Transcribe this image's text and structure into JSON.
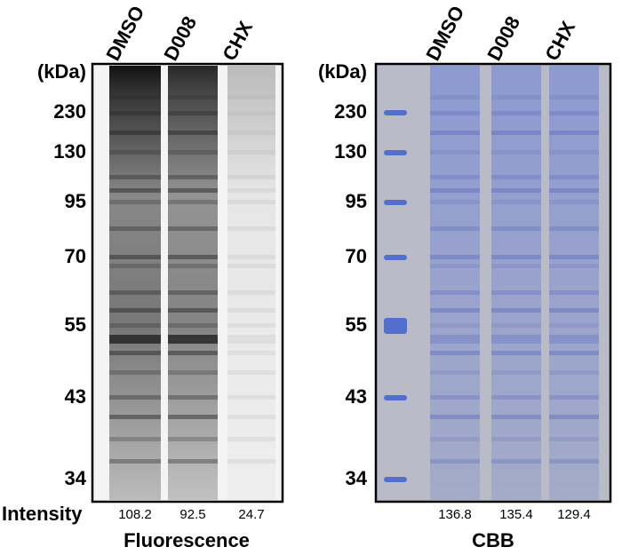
{
  "left": {
    "unit": "(kDa)",
    "lanes": [
      "DMSO",
      "D008",
      "CHX"
    ],
    "markers": [
      "230",
      "130",
      "95",
      "70",
      "55",
      "43",
      "34"
    ],
    "row_label": "Intensity",
    "intensities": [
      "108.2",
      "92.5",
      "24.7"
    ],
    "caption": "Fluorescence"
  },
  "right": {
    "unit": "(kDa)",
    "lanes": [
      "DMSO",
      "D008",
      "CHX"
    ],
    "markers": [
      "230",
      "130",
      "95",
      "70",
      "55",
      "43",
      "34"
    ],
    "intensities": [
      "136.8",
      "135.4",
      "129.4"
    ],
    "caption": "CBB"
  }
}
